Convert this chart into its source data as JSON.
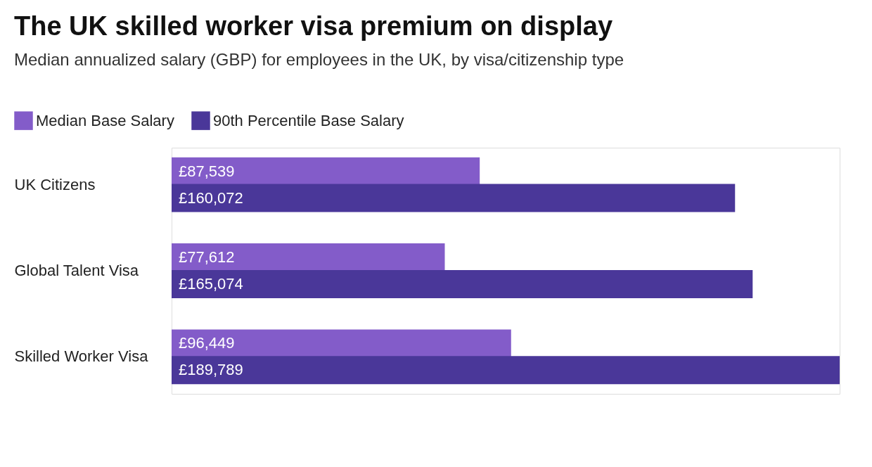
{
  "chart_data": {
    "type": "bar",
    "orientation": "horizontal",
    "title": "The UK skilled worker visa premium on display",
    "subtitle": "Median annualized salary (GBP) for employees in the UK, by visa/citizenship type",
    "categories": [
      "UK Citizens",
      "Global Talent Visa",
      "Skilled Worker Visa"
    ],
    "legend": "top left",
    "series": [
      {
        "name": "Median Base Salary",
        "color": "#835cc9",
        "values": [
          87539,
          77612,
          96449
        ],
        "value_labels": [
          "£87,539",
          "£77,612",
          "£96,449"
        ]
      },
      {
        "name": "90th Percentile Base Salary",
        "color": "#4a3799",
        "values": [
          160072,
          165074,
          189789
        ],
        "value_labels": [
          "£160,072",
          "£165,074",
          "£189,789"
        ]
      }
    ]
  }
}
